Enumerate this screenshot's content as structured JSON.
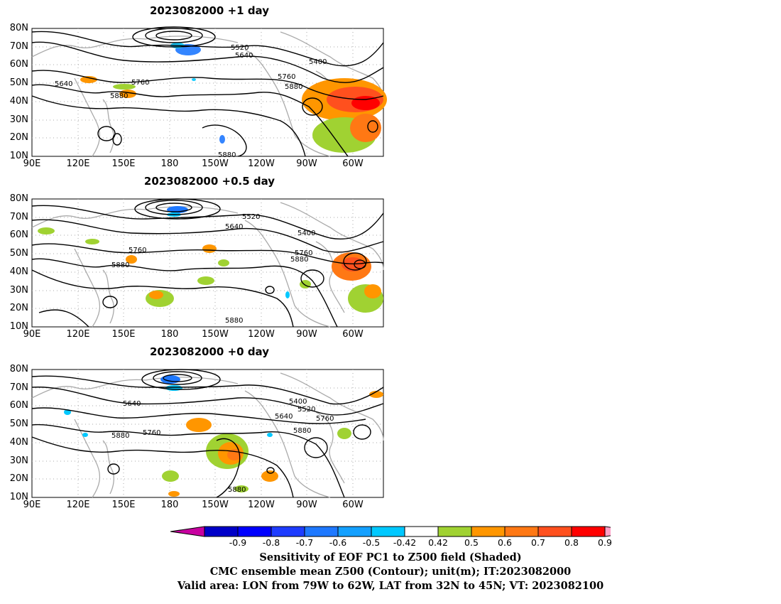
{
  "panels": [
    {
      "title": "2023082000  +1 day"
    },
    {
      "title": "2023082000  +0.5 day"
    },
    {
      "title": "2023082000  +0 day"
    }
  ],
  "lat_labels": [
    "80N",
    "70N",
    "60N",
    "50N",
    "40N",
    "30N",
    "20N",
    "10N"
  ],
  "lon_labels": [
    "90E",
    "120E",
    "150E",
    "180",
    "150W",
    "120W",
    "90W",
    "60W"
  ],
  "contour_labels": {
    "p1": [
      "5520",
      "5640",
      "5400",
      "5760",
      "5880",
      "5640",
      "5760",
      "5880",
      "5880"
    ],
    "p2": [
      "5520",
      "5640",
      "5400",
      "5760",
      "5880",
      "5760",
      "5880",
      "5880"
    ],
    "p3": [
      "5400",
      "5520",
      "5640",
      "5760",
      "5880",
      "5640",
      "5880",
      "5760",
      "5880"
    ]
  },
  "colorbar": {
    "ticks": [
      "-0.9",
      "-0.8",
      "-0.7",
      "-0.6",
      "-0.5",
      "-0.42",
      "0.42",
      "0.5",
      "0.6",
      "0.7",
      "0.8",
      "0.9"
    ],
    "colors": [
      "#0000c8",
      "#0000ff",
      "#1e3cff",
      "#1e78ff",
      "#14a0ff",
      "#00c8ff",
      "#ffffff",
      "#a0d232",
      "#ff9600",
      "#ff7814",
      "#ff501e",
      "#ff0000"
    ],
    "low_color": "#c800a0",
    "high_color": "#ffa0c8"
  },
  "caption": {
    "line1": "Sensitivity of EOF PC1 to Z500 field (Shaded)",
    "line2": "CMC ensemble mean Z500 (Contour); unit(m); IT:2023082000",
    "line3": "Valid area: LON from 79W to 62W, LAT from 32N to 45N; VT: 2023082100"
  }
}
